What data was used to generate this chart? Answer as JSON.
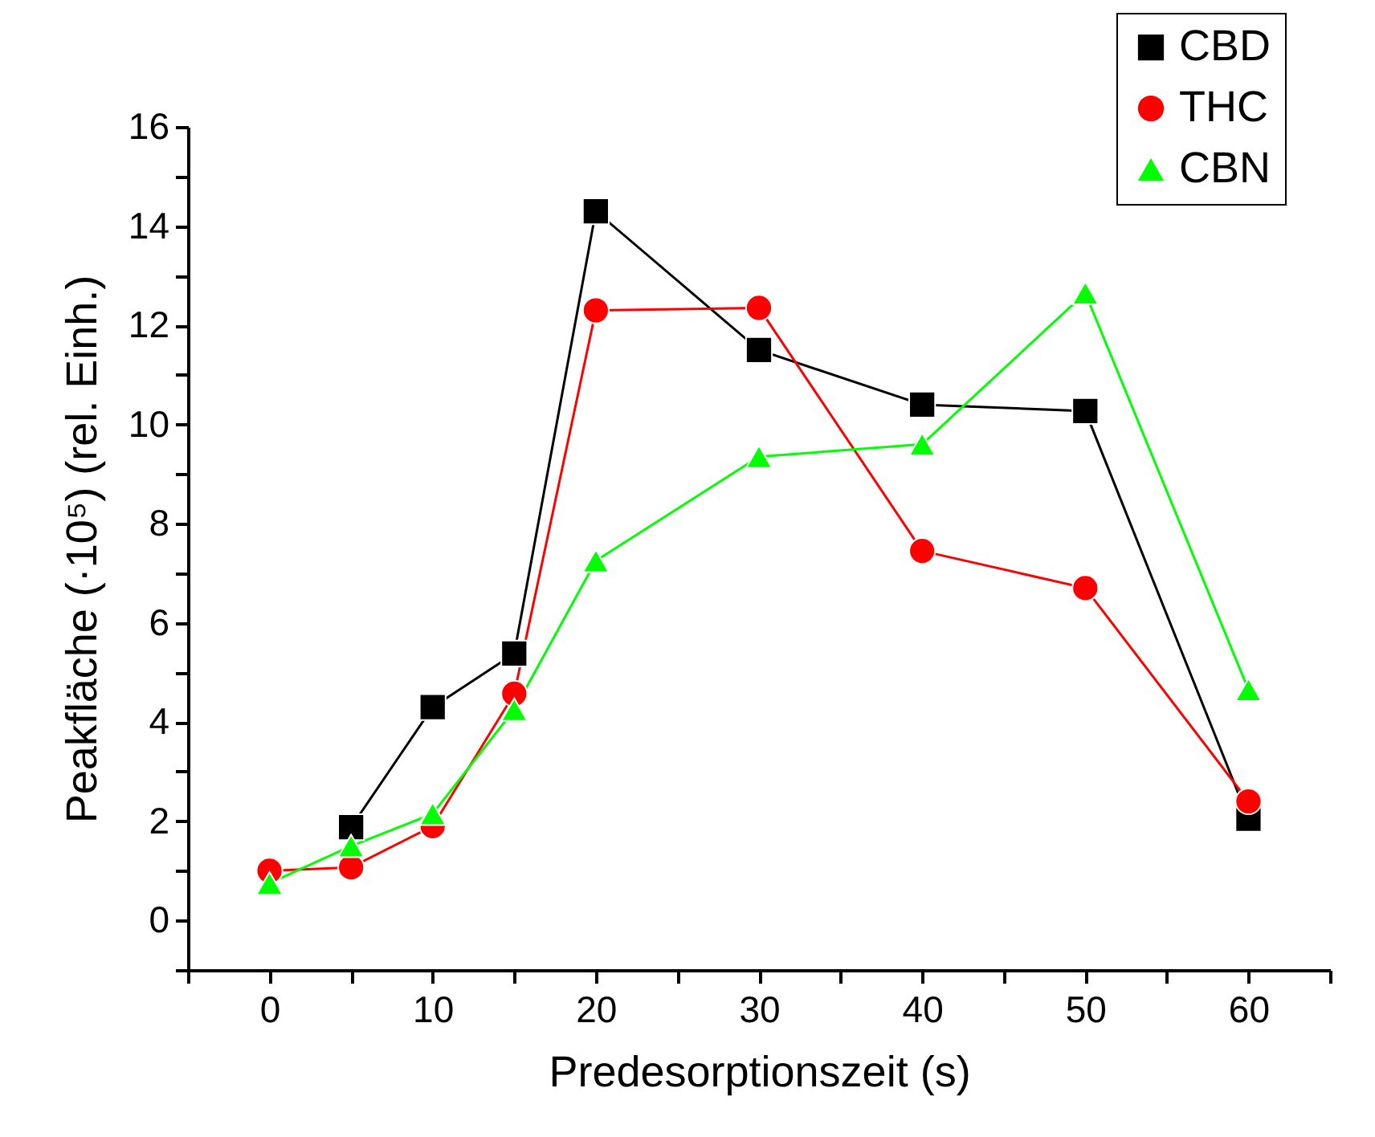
{
  "chart_data": {
    "type": "line",
    "xlabel": "Predesorptionszeit (s)",
    "ylabel": "Peakfläche (·10⁵) (rel. Einh.)",
    "x": [
      0,
      5,
      10,
      15,
      20,
      30,
      40,
      50,
      60
    ],
    "series": [
      {
        "name": "CBD",
        "color": "#000000",
        "marker": "square",
        "values": [
          null,
          1.88,
          4.3,
          5.38,
          14.3,
          11.5,
          10.4,
          10.27,
          2.05
        ]
      },
      {
        "name": "THC",
        "color": "#ff0000",
        "marker": "circle",
        "values": [
          1.0,
          1.07,
          1.9,
          4.57,
          12.3,
          12.35,
          7.45,
          6.7,
          2.4
        ]
      },
      {
        "name": "CBN",
        "color": "#00ff00",
        "marker": "triangle",
        "values": [
          0.75,
          1.5,
          2.15,
          4.25,
          7.25,
          9.35,
          9.6,
          12.65,
          4.65
        ]
      }
    ],
    "xlim": [
      -5,
      65
    ],
    "xticks": [
      {
        "value": -5,
        "label": null
      },
      0,
      {
        "value": 5,
        "label": null
      },
      10,
      {
        "value": 15,
        "label": null
      },
      20,
      {
        "value": 25,
        "label": null
      },
      30,
      {
        "value": 35,
        "label": null
      },
      40,
      {
        "value": 45,
        "label": null
      },
      50,
      {
        "value": 55,
        "label": null
      },
      60,
      {
        "value": 65,
        "label": null
      }
    ],
    "ylim": [
      -1,
      16
    ],
    "yticks": [
      {
        "value": -1,
        "label": null
      },
      0,
      {
        "value": 1,
        "label": null
      },
      2,
      {
        "value": 3,
        "label": null
      },
      4,
      {
        "value": 5,
        "label": null
      },
      6,
      {
        "value": 7,
        "label": null
      },
      8,
      {
        "value": 9,
        "label": null
      },
      10,
      {
        "value": 11,
        "label": null
      },
      12,
      {
        "value": 13,
        "label": null
      },
      14,
      {
        "value": 15,
        "label": null
      },
      16
    ],
    "grid": false,
    "legend": "top right",
    "line_style": "solid"
  }
}
